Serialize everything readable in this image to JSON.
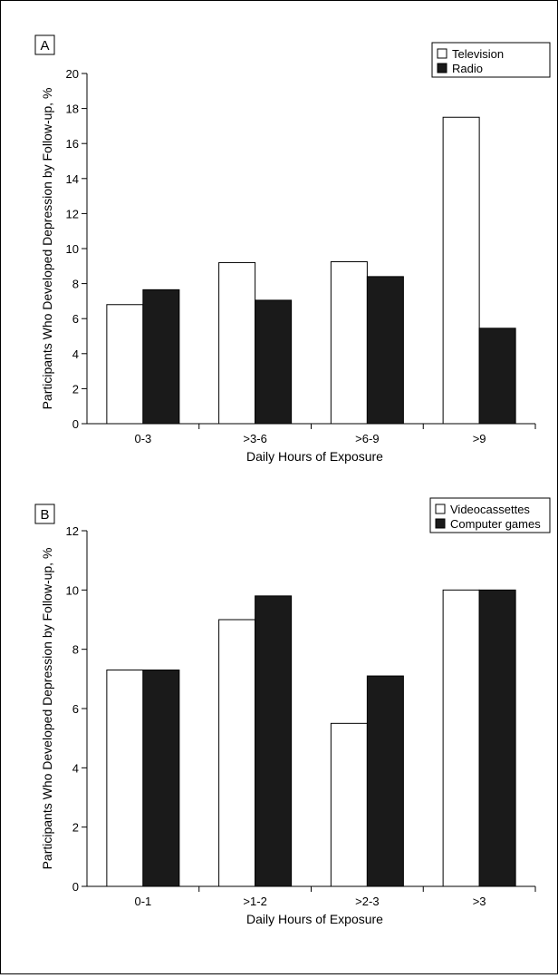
{
  "chart_data": [
    {
      "type": "bar",
      "panel_label": "A",
      "categories": [
        "0-3",
        ">3-6",
        ">6-9",
        ">9"
      ],
      "series": [
        {
          "name": "Television",
          "color": "#ffffff",
          "values": [
            6.8,
            9.2,
            9.25,
            17.5
          ]
        },
        {
          "name": "Radio",
          "color": "#1a1a1a",
          "values": [
            7.65,
            7.05,
            8.4,
            5.45
          ]
        }
      ],
      "xlabel": "Daily Hours of Exposure",
      "ylabel": "Participants Who Developed Depression by Follow-up, %",
      "ylim": [
        0,
        20
      ],
      "yticks": [
        "0",
        "2",
        "4",
        "6",
        "8",
        "10",
        "12",
        "14",
        "16",
        "18",
        "20"
      ],
      "legend": "top-right",
      "grid": false
    },
    {
      "type": "bar",
      "panel_label": "B",
      "categories": [
        "0-1",
        ">1-2",
        ">2-3",
        ">3"
      ],
      "series": [
        {
          "name": "Videocassettes",
          "color": "#ffffff",
          "values": [
            7.3,
            9.0,
            5.5,
            10.0
          ]
        },
        {
          "name": "Computer games",
          "color": "#1a1a1a",
          "values": [
            7.3,
            9.8,
            7.1,
            10.0
          ]
        }
      ],
      "xlabel": "Daily Hours of Exposure",
      "ylabel": "Participants Who Developed Depression by Follow-up, %",
      "ylim": [
        0,
        12
      ],
      "yticks": [
        "0",
        "2",
        "4",
        "6",
        "8",
        "10",
        "12"
      ],
      "legend": "top-right",
      "grid": false
    }
  ]
}
